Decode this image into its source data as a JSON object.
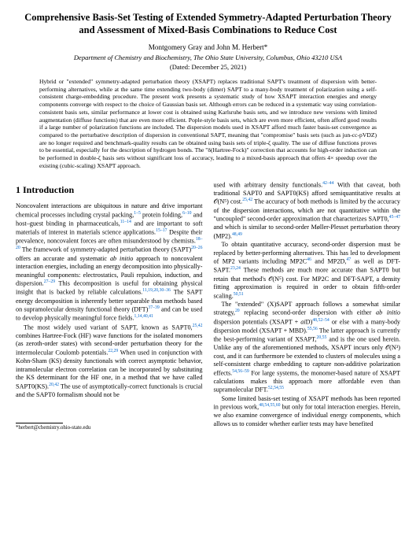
{
  "title": "Comprehensive Basis-Set Testing of Extended Symmetry-Adapted Perturbation Theory and Assessment of Mixed-Basis Combinations to Reduce Cost",
  "authors": "Montgomery Gray and John M. Herbert*",
  "affiliation": "Department of Chemistry and Biochemistry, The Ohio State University, Columbus, Ohio 43210 USA",
  "date": "(Dated: December 25, 2021)",
  "abstract": "Hybrid or \"extended\" symmetry-adapted perturbation theory (XSAPT) replaces traditional SAPT's treatment of dispersion with better-performing alternatives, while at the same time extending two-body (dimer) SAPT to a many-body treatment of polarization using a self-consistent charge-embedding procedure. The present work presents a systematic study of how XSAPT interaction energies and energy components converge with respect to the choice of Gaussian basis set. Although errors can be reduced in a systematic way using correlation-consistent basis sets, similar performance at lower cost is obtained using Karlsruhe basis sets, and we introduce new versions with limited augmentation (diffuse functions) that are even more efficient. Pople-style basis sets, which are even more efficient, often afford good results if a large number of polarization functions are included. The dispersion models used in XSAPT afford much faster basis-set convergence as compared to the perturbative description of dispersion in conventional SAPT, meaning that \"compromise\" basis sets (such as jun-cc-pVDZ) are no longer required and benchmark-quality results can be obtained using basis sets of triple-ζ quality. The use of diffuse functions proves to be essential, especially for the description of hydrogen bonds. The \"δ(Hartree-Fock)\" correction that accounts for high-order induction can be performed in double-ζ basis sets without significant loss of accuracy, leading to a mixed-basis approach that offers 4× speedup over the existing (cubic-scaling) XSAPT approach.",
  "section1_heading": "1   Introduction",
  "col1_p1": "Noncovalent interactions are ubiquitous in nature and drive important chemical processes including crystal packing,",
  "col1_p1b": " protein folding,",
  "col1_p1c": " and host–guest binding in pharmaceuticals,",
  "col1_p1d": " and are important to soft materials of interest in materials science applications.",
  "col1_p1e": " Despite their prevalence, noncovalent forces are often misunderstood by chemists.",
  "col1_p1f": " The framework of symmetry-adapted perturbation theory (SAPT)",
  "col1_p1g": " offers an accurate and systematic ",
  "col1_p1g_it": "ab initio",
  "col1_p1h": " approach to noncovalent interaction energies, including an energy decomposition into physically-meaningful components: electrostatics, Pauli repulsion, induction, and dispersion.",
  "col1_p1i": " This decomposition is useful for obtaining physical insight that is backed by reliable calculations.",
  "col1_p1j": " The SAPT energy decomposition is inherently better separable than methods based on supramolecular density functional theory (DFT)",
  "col1_p1k": " and can be used to develop physically meaningful force fields.",
  "col1_p2a": "The most widely used variant of SAPT, known as SAPT0,",
  "col1_p2b": " combines Hartree-Fock (HF) wave functions for the isolated monomers (as zeroth-order states) with second-order perturbation theory for the intermolecular Coulomb potentials.",
  "col1_p2c": " When used in conjunction with Kohn-Sham (KS) density functionals with correct asymptotic behavior, intramolecular electron correlation can be incorporated by substituting the KS determinant for the HF one, in a method that we have called SAPT0(KS).",
  "col1_p2d": " The use of asymptotically-correct functionals is crucial and the SAPT0 formalism should not be",
  "col2_p1a": "used with arbitrary density functionals.",
  "col2_p1b": " With that caveat, both traditional SAPT0 and SAPT0(KS) afford semiquantitative results at 𝒪(N⁵) cost.",
  "col2_p1c": " The accuracy of both methods is limited by the accuracy of the dispersion interactions, which are not quantitative within the \"uncoupled\" second-order approximation that characterizes SAPT0,",
  "col2_p1d": " and which is similar to second-order Møller-Plesset perturbation theory (MP2).",
  "col2_p2a": "To obtain quantitative accuracy, second-order dispersion must be replaced by better-performing alternatives. This has led to development of MP2 variants including MP2C",
  "col2_p2b": " and MP2D,",
  "col2_p2c": " as well as DFT-SAPT.",
  "col2_p2d": " These methods are much more accurate than SAPT0 but retain that method's 𝒪(N⁵) cost. For MP2C and DFT-SAPT, a density fitting approximation is required in order to obtain fifth-order scaling.",
  "col2_p3a": "The \"extended\" (X)SAPT approach follows a somewhat similar strategy,",
  "col2_p3b": " replacing second-order dispersion with either ",
  "col2_p3b_it": "ab initio",
  "col2_p3c": " dispersion potentials (XSAPT + ",
  "col2_p3c_it": "ai",
  "col2_p3d": "D)",
  "col2_p3e": " or else with a many-body dispersion model (XSAPT + MBD).",
  "col2_p3f": " The latter approach is currently the best-performing variant of XSAPT,",
  "col2_p3g": " and is the one used herein. Unlike any of the aforementioned methods, XSAPT incurs only 𝒪(N³) cost, and it can furthermore be extended to clusters of molecules using a self-consistent charge embedding to capture non-additive polarization effects.",
  "col2_p3h": " For large systems, the monomer-based nature of XSAPT calculations makes this approach more affordable even than supramolecular DFT.",
  "col2_p4a": "Some limited basis-set testing of XSAPT methods has been reported in previous work,",
  "col2_p4b": " but only for total interaction energies. Herein, we also examine convergence of individual energy components, which allows us to consider whether earlier tests may have benefited",
  "footnote": "*herbert@chemistry.ohio-state.edu",
  "refs": {
    "r1": "1–5",
    "r2": "6–10",
    "r3": "11–14",
    "r4": "15–17",
    "r5": "18–20",
    "r6": "20–26",
    "r7": "27–29",
    "r8": "11,19,20,30–36",
    "r9": "37–39",
    "r10": "1,14,40,41",
    "r11": "25,42",
    "r12": "22,29",
    "r13": "20,42",
    "r14": "42–44",
    "r15": "25,42",
    "r16": "45–47",
    "r17": "48,49",
    "r18": "46",
    "r19": "47",
    "r20": "23,24",
    "r21": "50,51",
    "r22": "20",
    "r23": "48,52–54",
    "r24": "55,56",
    "r25": "20,55",
    "r26": "54,56–59",
    "r27": "52,54,55",
    "r28": "48,54,55,60"
  }
}
